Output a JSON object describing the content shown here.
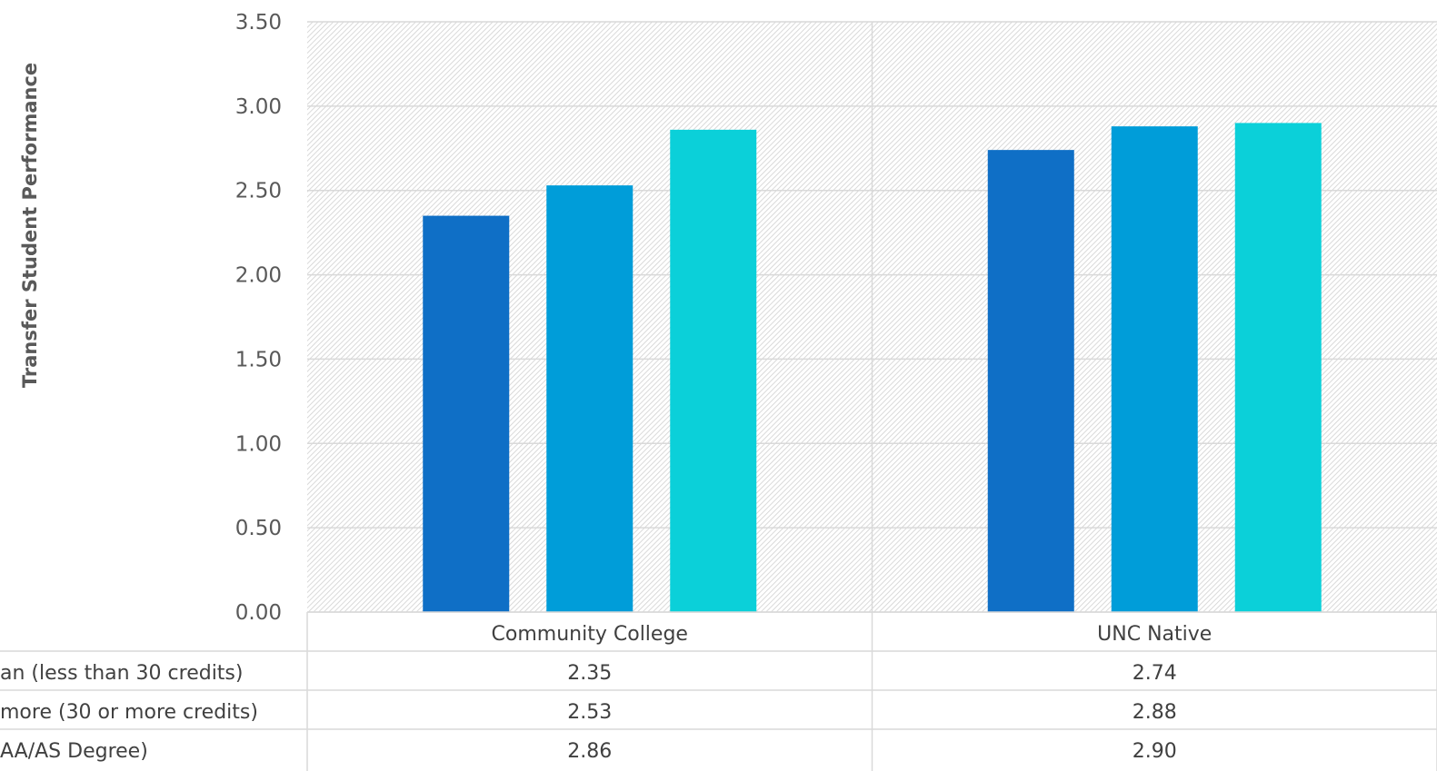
{
  "chart_data": {
    "type": "bar",
    "title": "",
    "ylabel": "Transfer Student Performance",
    "xlabel": "",
    "ylim": [
      0,
      3.5
    ],
    "yticks": [
      "0.00",
      "0.50",
      "1.00",
      "1.50",
      "2.00",
      "2.50",
      "3.00",
      "3.50"
    ],
    "grid": true,
    "legend": "data-table",
    "categories": [
      "Community College",
      "UNC Native"
    ],
    "series": [
      {
        "name": "an (less than 30 credits)",
        "color": "#0F6FC6",
        "values": [
          2.35,
          2.74
        ],
        "labels": [
          "2.35",
          "2.74"
        ]
      },
      {
        "name": "more (30 or more credits)",
        "color": "#009DD9",
        "values": [
          2.53,
          2.88
        ],
        "labels": [
          "2.53",
          "2.88"
        ]
      },
      {
        "name": "AA/AS Degree)",
        "color": "#0BD0D9",
        "values": [
          2.86,
          2.9
        ],
        "labels": [
          "2.86",
          "2.90"
        ]
      }
    ]
  }
}
